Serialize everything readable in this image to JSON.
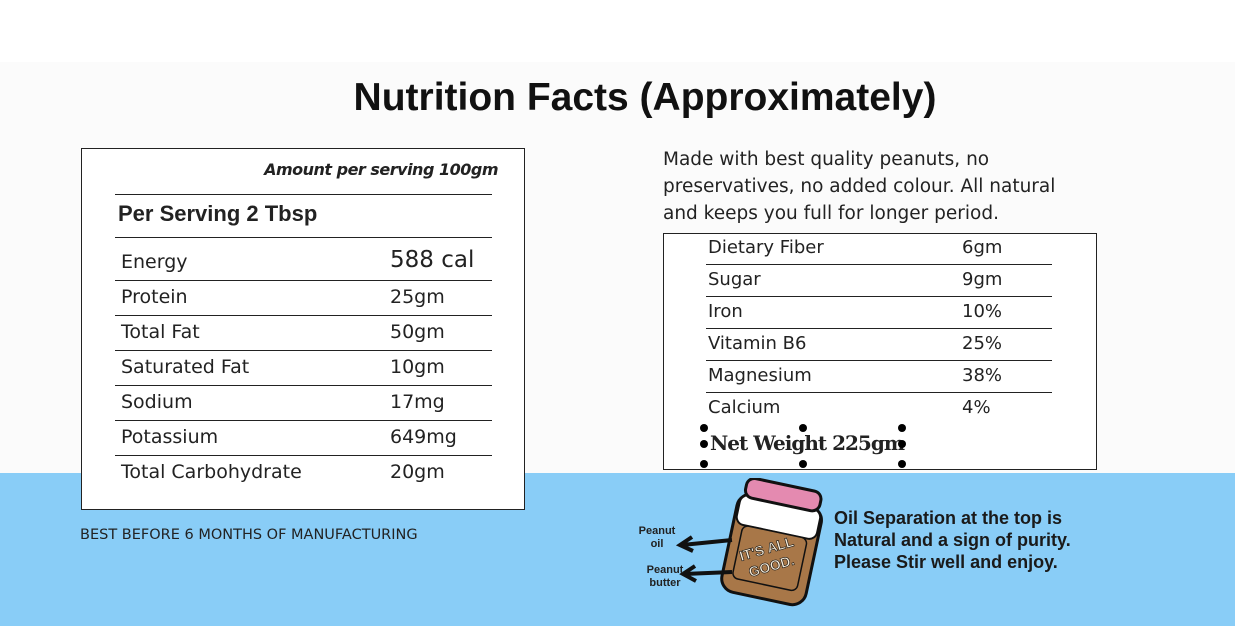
{
  "title": "Nutrition Facts  (Approximately)",
  "left_table": {
    "header": "Amount per serving 100gm",
    "subheader": "Per Serving 2 Tbsp",
    "rows": [
      [
        "Energy",
        "588 cal"
      ],
      [
        "Protein",
        "25gm"
      ],
      [
        "Total Fat",
        "50gm"
      ],
      [
        "Saturated Fat",
        "10gm"
      ],
      [
        "Sodium",
        "17mg"
      ],
      [
        "Potassium",
        "649mg"
      ],
      [
        "Total Carbohydrate",
        "20gm"
      ]
    ]
  },
  "footnote": "BEST BEFORE 6 MONTHS OF MANUFACTURING",
  "description": "Made with best quality peanuts, no preservatives, no added colour. All natural and keeps you full for longer period.",
  "right_table": {
    "rows": [
      [
        "Dietary Fiber",
        "6gm"
      ],
      [
        "Sugar",
        "9gm"
      ],
      [
        "Iron",
        "10%"
      ],
      [
        "Vitamin B6",
        "25%"
      ],
      [
        "Magnesium",
        "38%"
      ],
      [
        "Calcium",
        "4%"
      ]
    ]
  },
  "net_weight": "Net Weight 225gm",
  "jar": {
    "label_lines": [
      "IT'S ALL",
      "GOOD."
    ],
    "arrow_labels": [
      "Peanut oil",
      "Peanut butter"
    ]
  },
  "note_lines": [
    "Oil Separation at the top is",
    "Natural and a sign of purity.",
    "Please Stir well and enjoy."
  ]
}
